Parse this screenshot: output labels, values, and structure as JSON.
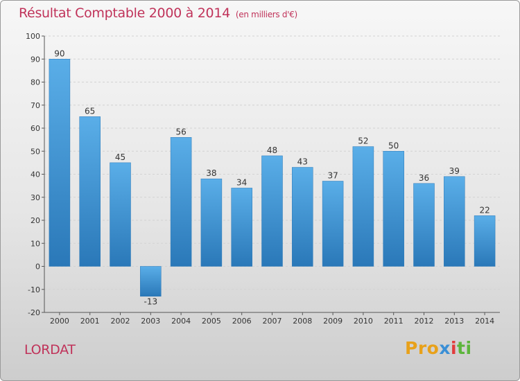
{
  "title": "Résultat Comptable 2000 à 2014",
  "subtitle": "(en milliers d'€)",
  "commune": "LORDAT",
  "logo": {
    "p1": "Pro",
    "p2": "x",
    "p3": "i",
    "p4": "ti"
  },
  "colors": {
    "accent": "#c0335a",
    "bar_light": "#5aaee8",
    "bar_dark": "#2a78b8"
  },
  "chart_data": {
    "type": "bar",
    "categories": [
      "2000",
      "2001",
      "2002",
      "2003",
      "2004",
      "2005",
      "2006",
      "2007",
      "2008",
      "2009",
      "2010",
      "2011",
      "2012",
      "2013",
      "2014"
    ],
    "values": [
      90,
      65,
      45,
      -13,
      56,
      38,
      34,
      48,
      43,
      37,
      52,
      50,
      36,
      39,
      22
    ],
    "ylim": [
      -20,
      100
    ],
    "yticks": [
      -20,
      -10,
      0,
      10,
      20,
      30,
      40,
      50,
      60,
      70,
      80,
      90,
      100
    ],
    "grid": true
  }
}
